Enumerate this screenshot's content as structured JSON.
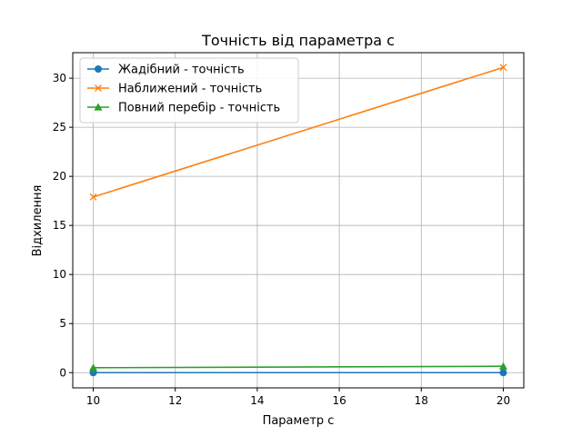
{
  "chart_data": {
    "type": "line",
    "title": "Точність від параметра c",
    "xlabel": "Параметр c",
    "ylabel": "Відхилення",
    "xlim": [
      9.5,
      20.5
    ],
    "ylim": [
      -1.55,
      32.6
    ],
    "xticks": [
      10,
      12,
      14,
      16,
      18,
      20
    ],
    "yticks": [
      0,
      5,
      10,
      15,
      20,
      25,
      30
    ],
    "grid": true,
    "legend_position": "top-left",
    "series": [
      {
        "name": "Жадібний - точність",
        "x": [
          10,
          20
        ],
        "y": [
          0.0,
          0.0
        ],
        "color": "#1f77b4",
        "marker": "circle"
      },
      {
        "name": "Наближений - точність",
        "x": [
          10,
          20
        ],
        "y": [
          17.9,
          31.1
        ],
        "color": "#ff7f0e",
        "marker": "x"
      },
      {
        "name": "Повний перебір - точність",
        "x": [
          10,
          20
        ],
        "y": [
          0.5,
          0.65
        ],
        "color": "#2ca02c",
        "marker": "triangle"
      }
    ]
  }
}
